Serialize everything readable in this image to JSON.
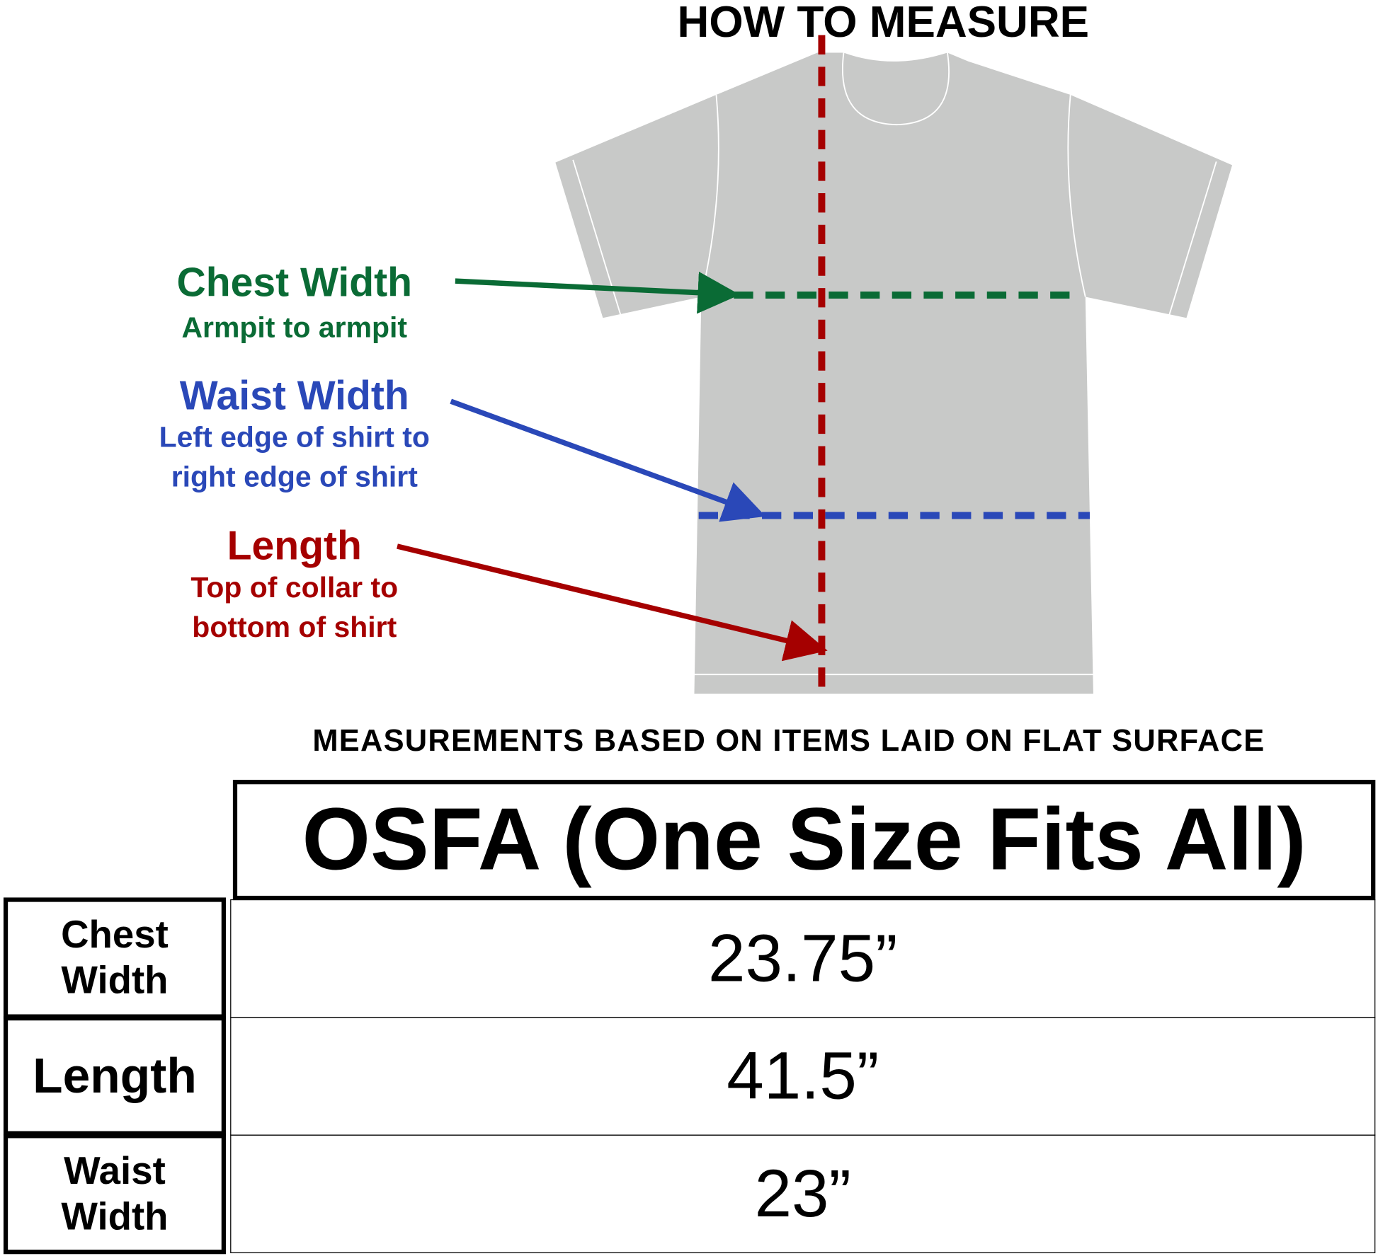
{
  "title": "HOW TO MEASURE",
  "colors": {
    "chest": "#0a6b35",
    "waist": "#2a48b8",
    "length": "#a50000",
    "shirt": "#c8c9c8"
  },
  "labels": {
    "chest": {
      "heading": "Chest Width",
      "sub": [
        "Armpit to armpit"
      ]
    },
    "waist": {
      "heading": "Waist Width",
      "sub": [
        "Left edge of shirt to",
        "right edge of shirt"
      ]
    },
    "length": {
      "heading": "Length",
      "sub": [
        "Top of collar to",
        "bottom of shirt"
      ]
    }
  },
  "note": "MEASUREMENTS BASED ON ITEMS LAID ON FLAT SURFACE",
  "table": {
    "header": "OSFA (One Size Fits All)",
    "rows": [
      {
        "label": [
          "Chest",
          "Width"
        ],
        "value": "23.75”"
      },
      {
        "label": [
          "Length"
        ],
        "value": "41.5”"
      },
      {
        "label": [
          "Waist",
          "Width"
        ],
        "value": "23”"
      }
    ]
  }
}
